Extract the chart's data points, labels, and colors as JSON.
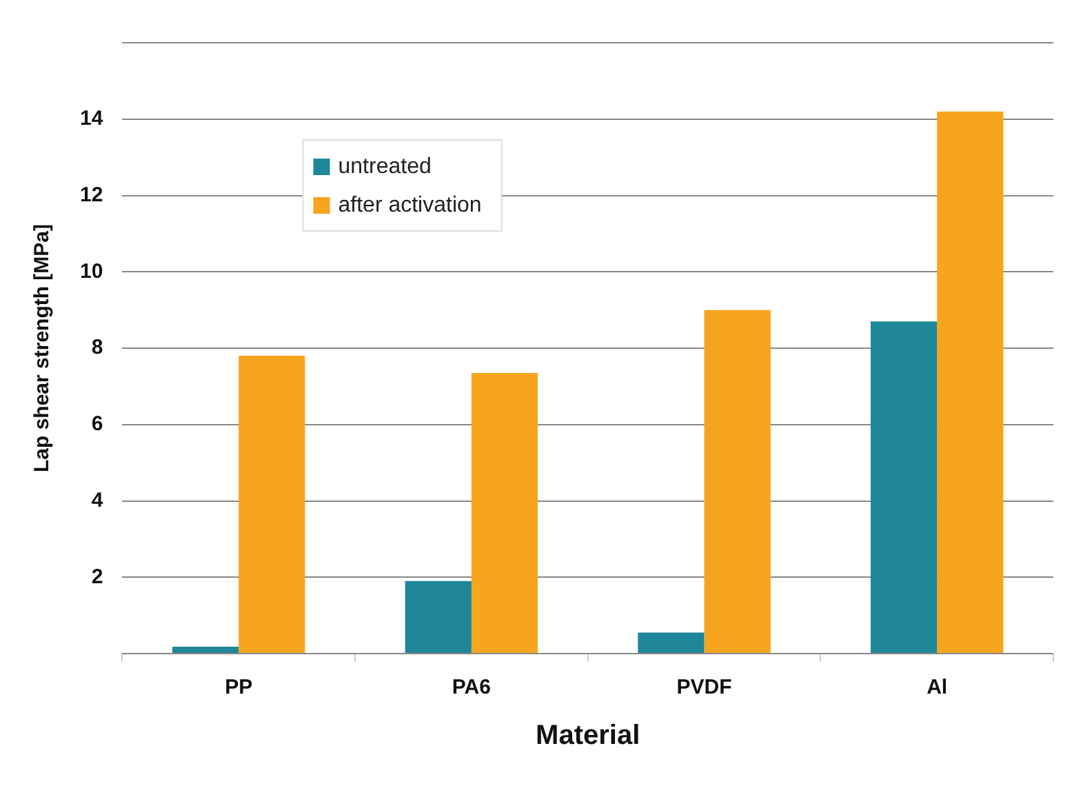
{
  "chart_data": {
    "type": "bar",
    "xlabel": "Material",
    "ylabel": "Lap shear strength [MPa]",
    "categories": [
      "PP",
      "PA6",
      "PVDF",
      "Al"
    ],
    "series": [
      {
        "name": "untreated",
        "color": "#1f8799",
        "values": [
          0.18,
          1.9,
          0.55,
          8.7
        ]
      },
      {
        "name": "after activation",
        "color": "#f7a51f",
        "values": [
          7.8,
          7.35,
          9.0,
          14.2
        ]
      }
    ],
    "ylim": [
      0,
      16
    ],
    "yticks": [
      {
        "value": 0,
        "label": null
      },
      2,
      4,
      6,
      8,
      10,
      12,
      14,
      {
        "value": 16,
        "label": null
      }
    ],
    "grid": "y",
    "legend": "top left"
  }
}
